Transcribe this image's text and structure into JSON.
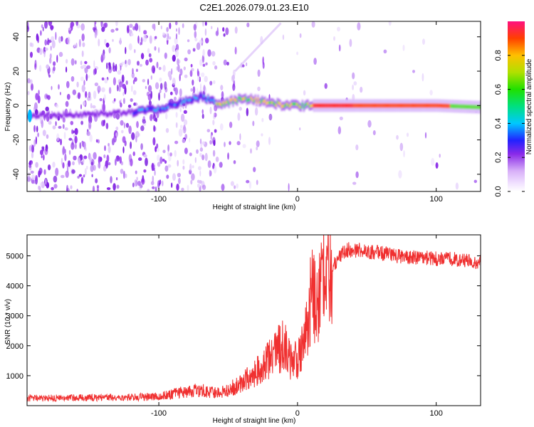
{
  "title": "C2E1.2026.079.01.23.E10",
  "chart_data": [
    {
      "type": "heatmap",
      "name": "spectrogram",
      "xlabel": "Height of straight line (km)",
      "ylabel": "Frequency (Hz)",
      "xlim": [
        -195,
        132
      ],
      "ylim": [
        -50,
        49
      ],
      "xticks": [
        -100,
        0,
        100
      ],
      "yticks": [
        -40,
        -20,
        0,
        20,
        40
      ],
      "colorbar": {
        "label": "Normalized spectral amplitude",
        "range": [
          0,
          1
        ],
        "ticks": [
          0.0,
          0.2,
          0.4,
          0.6,
          0.8
        ],
        "tick_labels": [
          "0.0",
          "0.2",
          "0.4",
          "0.6",
          "0.8"
        ]
      },
      "ridge": {
        "description": "dominant frequency track",
        "points": [
          [
            -195,
            -6
          ],
          [
            -150,
            -5
          ],
          [
            -120,
            -4
          ],
          [
            -100,
            -2
          ],
          [
            -85,
            2
          ],
          [
            -70,
            5
          ],
          [
            -55,
            1
          ],
          [
            -40,
            4
          ],
          [
            -30,
            3
          ],
          [
            -20,
            2
          ],
          [
            -10,
            0
          ],
          [
            0,
            0
          ],
          [
            20,
            0
          ],
          [
            60,
            0
          ],
          [
            100,
            0
          ],
          [
            132,
            -1
          ]
        ]
      }
    },
    {
      "type": "line",
      "name": "snr",
      "xlabel": "Height of straight line (km)",
      "ylabel": "SNR (10 * v/v)",
      "xlim": [
        -195,
        132
      ],
      "ylim": [
        0,
        5700
      ],
      "xticks": [
        -100,
        0,
        100
      ],
      "yticks": [
        1000,
        2000,
        3000,
        4000,
        5000
      ],
      "color": "#f03030",
      "series": [
        {
          "name": "SNR",
          "x": [
            -195,
            -180,
            -160,
            -140,
            -120,
            -100,
            -80,
            -70,
            -60,
            -50,
            -40,
            -30,
            -25,
            -20,
            -15,
            -10,
            -5,
            0,
            5,
            10,
            15,
            20,
            25,
            30,
            35,
            40,
            50,
            60,
            70,
            80,
            90,
            100,
            110,
            120,
            132
          ],
          "values": [
            250,
            250,
            260,
            270,
            280,
            300,
            480,
            530,
            430,
            520,
            780,
            1100,
            1300,
            1550,
            1800,
            2000,
            1550,
            1500,
            2400,
            3600,
            3850,
            4350,
            4650,
            4950,
            5200,
            5200,
            5150,
            5100,
            5000,
            4950,
            4950,
            4900,
            4900,
            4850,
            4800
          ]
        }
      ]
    }
  ]
}
